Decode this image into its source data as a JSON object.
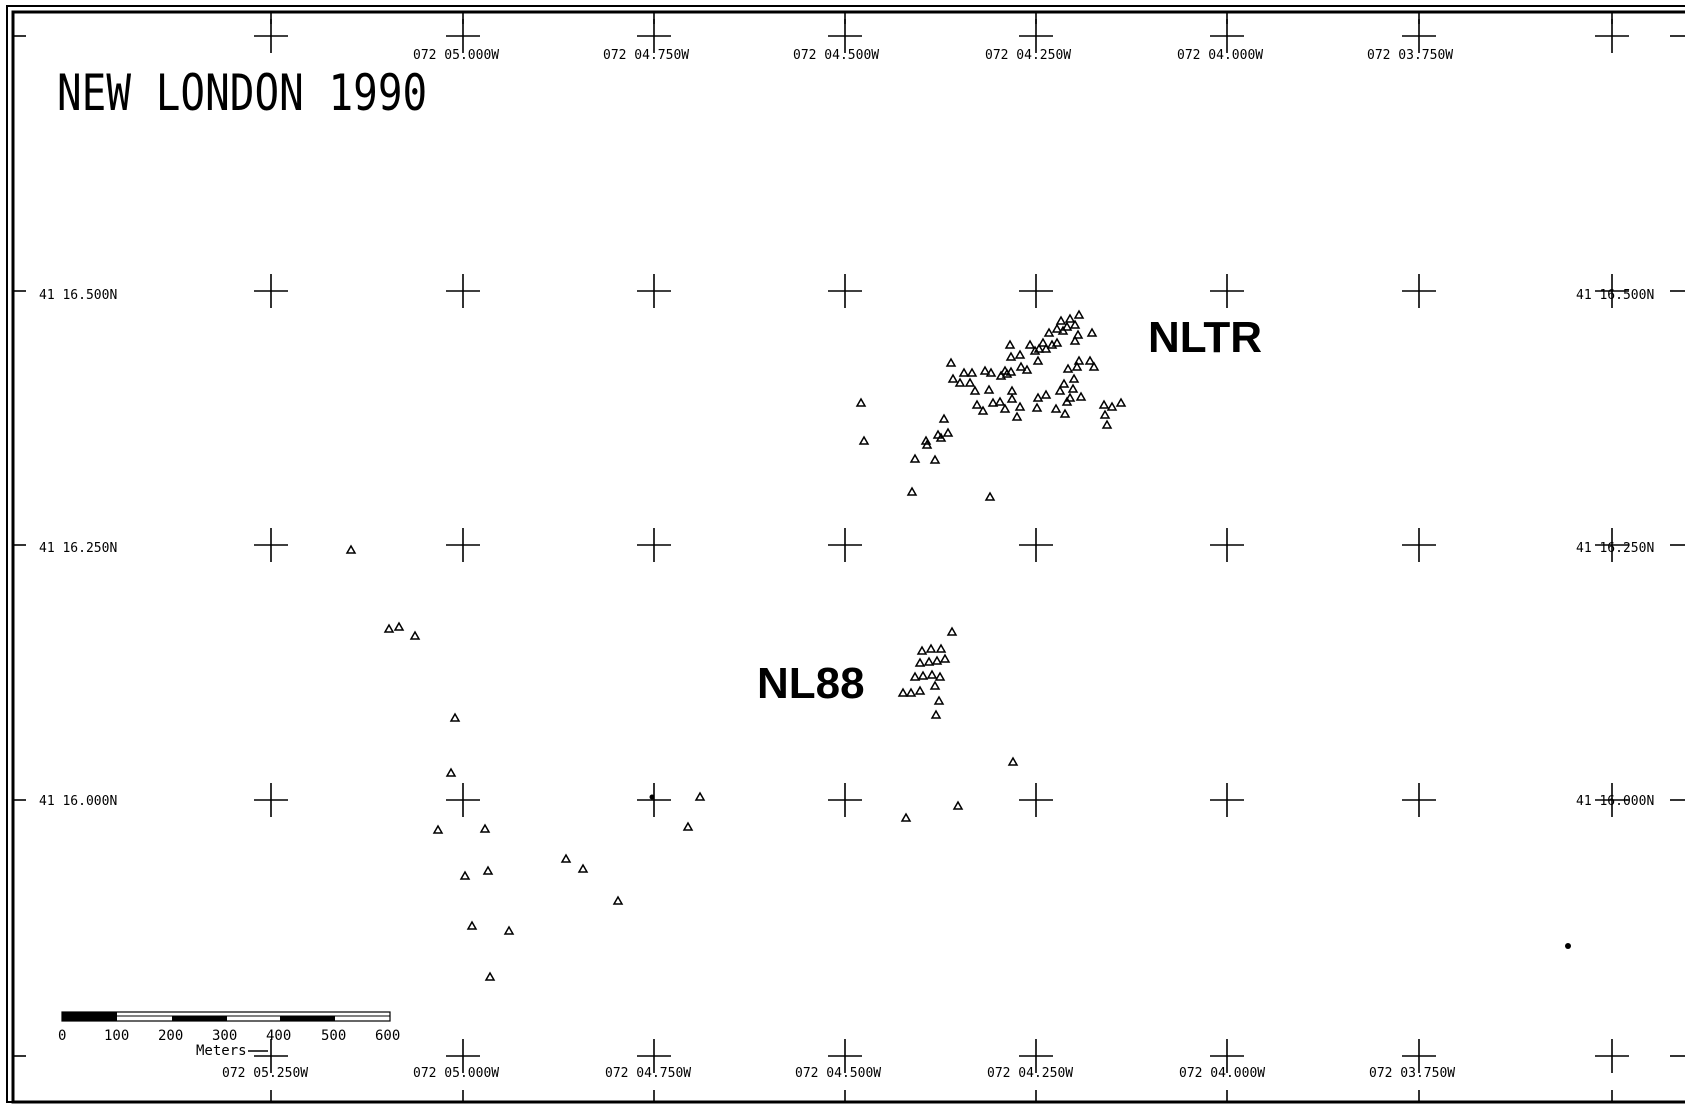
{
  "title": "NEW LONDON 1990",
  "area_labels": {
    "nltr": "NLTR",
    "nl88": "NL88"
  },
  "lon_labels_top": [
    "072 05.000W",
    "072 04.750W",
    "072 04.500W",
    "072 04.250W",
    "072 04.000W",
    "072 03.750W"
  ],
  "lon_labels_bottom": [
    "072 05.250W",
    "072 05.000W",
    "072 04.750W",
    "072 04.500W",
    "072 04.250W",
    "072 04.000W",
    "072 03.750W"
  ],
  "lat_labels_left": [
    "41 16.500N",
    "41 16.250N",
    "41 16.000N"
  ],
  "lat_labels_right": [
    "41 16.500N",
    "41 16.250N",
    "41 16.000N"
  ],
  "scale_bar": {
    "ticks": [
      "0",
      "100",
      "200",
      "300",
      "400",
      "500",
      "600"
    ],
    "unit": "Meters"
  },
  "stations": {
    "nltr_cluster": [
      [
        1079,
        315
      ],
      [
        1070,
        319
      ],
      [
        1061,
        321
      ],
      [
        1075,
        325
      ],
      [
        1067,
        327
      ],
      [
        1057,
        329
      ],
      [
        1049,
        333
      ],
      [
        1063,
        331
      ],
      [
        1078,
        335
      ],
      [
        1092,
        333
      ],
      [
        1043,
        343
      ],
      [
        1052,
        345
      ],
      [
        1039,
        349
      ],
      [
        1046,
        349
      ],
      [
        1057,
        343
      ],
      [
        1075,
        341
      ],
      [
        1030,
        345
      ],
      [
        1035,
        351
      ],
      [
        1010,
        345
      ],
      [
        1011,
        357
      ],
      [
        1020,
        355
      ],
      [
        1005,
        371
      ],
      [
        1011,
        372
      ],
      [
        1001,
        376
      ],
      [
        991,
        373
      ],
      [
        1027,
        370
      ],
      [
        1038,
        361
      ],
      [
        1068,
        369
      ],
      [
        1079,
        361
      ],
      [
        1090,
        361
      ],
      [
        1074,
        379
      ],
      [
        964,
        373
      ],
      [
        972,
        373
      ],
      [
        985,
        371
      ],
      [
        953,
        379
      ],
      [
        960,
        383
      ],
      [
        970,
        383
      ],
      [
        975,
        391
      ],
      [
        989,
        390
      ],
      [
        1000,
        402
      ],
      [
        1012,
        399
      ],
      [
        1020,
        407
      ],
      [
        1005,
        409
      ],
      [
        1037,
        408
      ],
      [
        1060,
        391
      ],
      [
        1073,
        389
      ],
      [
        1070,
        398
      ],
      [
        1081,
        397
      ],
      [
        1104,
        405
      ],
      [
        1112,
        407
      ],
      [
        1121,
        403
      ],
      [
        1105,
        415
      ],
      [
        1107,
        425
      ],
      [
        1067,
        402
      ],
      [
        1065,
        414
      ],
      [
        1056,
        409
      ],
      [
        1046,
        395
      ],
      [
        1038,
        398
      ],
      [
        1064,
        384
      ],
      [
        1077,
        367
      ],
      [
        1094,
        367
      ],
      [
        1012,
        391
      ],
      [
        993,
        403
      ],
      [
        977,
        405
      ],
      [
        983,
        411
      ],
      [
        1017,
        417
      ],
      [
        944,
        419
      ],
      [
        948,
        433
      ],
      [
        926,
        441
      ],
      [
        941,
        438
      ],
      [
        927,
        445
      ],
      [
        938,
        435
      ],
      [
        915,
        459
      ],
      [
        935,
        460
      ],
      [
        912,
        492
      ],
      [
        990,
        497
      ],
      [
        1021,
        367
      ],
      [
        951,
        363
      ],
      [
        1007,
        374
      ]
    ],
    "nl88_cluster": [
      [
        952,
        632
      ],
      [
        922,
        651
      ],
      [
        931,
        649
      ],
      [
        941,
        649
      ],
      [
        920,
        663
      ],
      [
        929,
        662
      ],
      [
        937,
        661
      ],
      [
        945,
        659
      ],
      [
        915,
        677
      ],
      [
        923,
        676
      ],
      [
        932,
        675
      ],
      [
        940,
        677
      ],
      [
        903,
        693
      ],
      [
        911,
        693
      ],
      [
        920,
        691
      ],
      [
        935,
        686
      ],
      [
        939,
        701
      ],
      [
        936,
        715
      ]
    ],
    "outliers": [
      [
        861,
        403
      ],
      [
        864,
        441
      ],
      [
        351,
        550
      ],
      [
        389,
        629
      ],
      [
        399,
        627
      ],
      [
        415,
        636
      ],
      [
        455,
        718
      ],
      [
        451,
        773
      ],
      [
        438,
        830
      ],
      [
        485,
        829
      ],
      [
        465,
        876
      ],
      [
        488,
        871
      ],
      [
        472,
        926
      ],
      [
        509,
        931
      ],
      [
        490,
        977
      ],
      [
        566,
        859
      ],
      [
        583,
        869
      ],
      [
        618,
        901
      ],
      [
        700,
        797
      ],
      [
        688,
        827
      ],
      [
        1013,
        762
      ],
      [
        958,
        806
      ],
      [
        906,
        818
      ]
    ]
  }
}
